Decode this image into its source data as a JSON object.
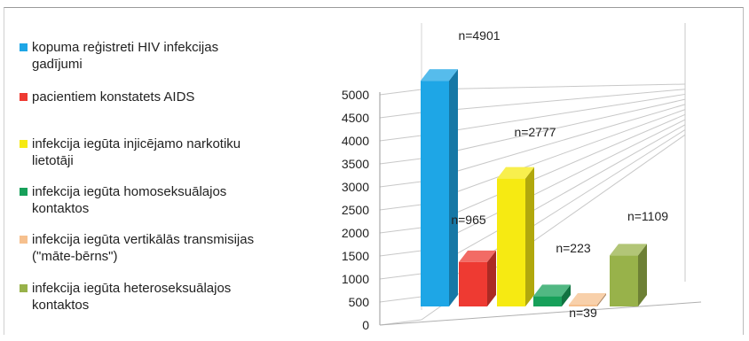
{
  "chart_data": {
    "type": "bar",
    "title": "",
    "xlabel": "",
    "ylabel": "",
    "ylim": [
      0,
      5000
    ],
    "yticks": [
      0,
      500,
      1000,
      1500,
      2000,
      2500,
      3000,
      3500,
      4000,
      4500,
      5000
    ],
    "grid": true,
    "legend_position": "left",
    "series": [
      {
        "name": "kopuma reģistreti  HIV infekcijas gadījumi",
        "value": 4901,
        "label": "n=4901",
        "color": "#1ea6e6"
      },
      {
        "name": "pacientiem konstatets AIDS",
        "value": 965,
        "label": "n=965",
        "color": "#ee3a32"
      },
      {
        "name": "infekcija iegūta injicējamo narkotiku lietotāji",
        "value": 2777,
        "label": "n=2777",
        "color": "#f6ea12"
      },
      {
        "name": "infekcija iegūta homoseksuālajos kontaktos",
        "value": 223,
        "label": "n=223",
        "color": "#17a05a"
      },
      {
        "name": "infekcija iegūta vertikālās transmisijas (\"māte-bērns\")",
        "value": 39,
        "label": "n=39",
        "color": "#f6c08e"
      },
      {
        "name": "infekcija iegūta heteroseksuālajos kontaktos",
        "value": 1109,
        "label": "n=1109",
        "color": "#98b24a"
      }
    ]
  }
}
